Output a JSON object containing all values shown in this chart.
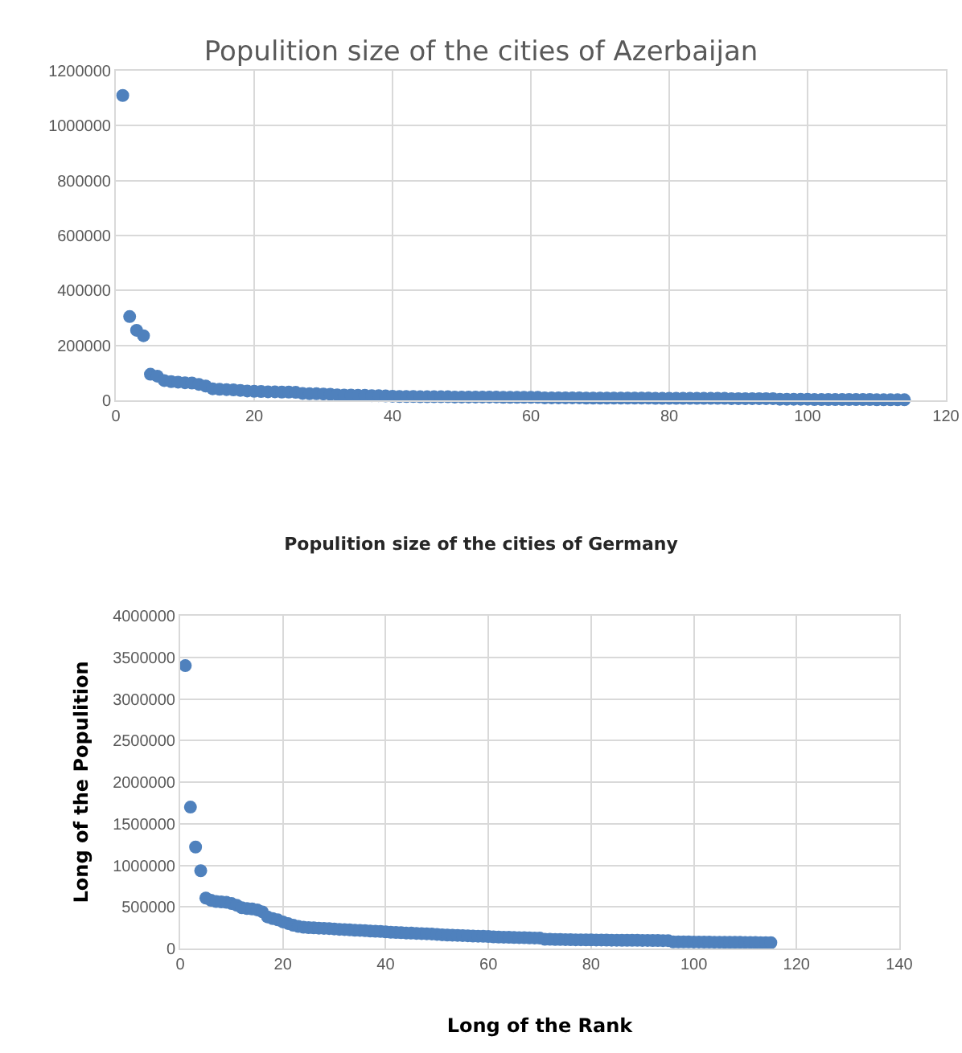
{
  "chart_data": [
    {
      "type": "scatter",
      "title": "Populition size of the cities of Azerbaijan",
      "marker": "circle",
      "grid": true,
      "x": [
        1,
        2,
        3,
        4,
        5,
        6,
        7,
        8,
        9,
        10,
        11,
        12,
        13,
        14,
        15,
        16,
        17,
        18,
        19,
        20,
        21,
        22,
        23,
        24,
        25,
        26,
        27,
        28,
        29,
        30,
        31,
        32,
        33,
        34,
        35,
        36,
        37,
        38,
        39,
        40,
        41,
        42,
        43,
        44,
        45,
        46,
        47,
        48,
        49,
        50,
        51,
        52,
        53,
        54,
        55,
        56,
        57,
        58,
        59,
        60,
        61,
        62,
        63,
        64,
        65,
        66,
        67,
        68,
        69,
        70,
        71,
        72,
        73,
        74,
        75,
        76,
        77,
        78,
        79,
        80,
        81,
        82,
        83,
        84,
        85,
        86,
        87,
        88,
        89,
        90,
        91,
        92,
        93,
        94,
        95,
        96,
        97,
        98,
        99,
        100,
        101,
        102,
        103,
        104,
        105,
        106,
        107,
        108,
        109,
        110,
        111,
        112,
        113,
        114
      ],
      "series": [
        {
          "color": "#4f81bd",
          "values": [
            1110000,
            305000,
            255000,
            235000,
            95000,
            88000,
            72000,
            68000,
            66000,
            64000,
            63000,
            58000,
            52000,
            42000,
            40000,
            39000,
            38000,
            36000,
            34000,
            33000,
            32000,
            31000,
            31000,
            30000,
            30000,
            29000,
            25000,
            24000,
            24000,
            23000,
            22000,
            20000,
            19000,
            19000,
            18000,
            18000,
            17000,
            17000,
            16000,
            15000,
            14000,
            14000,
            14000,
            13000,
            13000,
            13000,
            13000,
            13000,
            12000,
            12000,
            12000,
            12000,
            12000,
            12000,
            12000,
            11000,
            11000,
            11000,
            11000,
            11000,
            11000,
            9000,
            9000,
            9000,
            9000,
            9000,
            9000,
            8000,
            8000,
            8000,
            8000,
            8000,
            8000,
            8000,
            8000,
            8000,
            8000,
            7000,
            7000,
            7000,
            7000,
            7000,
            7000,
            7000,
            7000,
            7000,
            7000,
            7000,
            6000,
            6000,
            6000,
            6000,
            6000,
            6000,
            6000,
            4000,
            4000,
            4000,
            4000,
            4000,
            3000,
            3000,
            3000,
            3000,
            3000,
            3000,
            3000,
            3000,
            3000,
            2000,
            2000,
            2000,
            2000,
            2000
          ]
        }
      ],
      "xlim": [
        0,
        120
      ],
      "xticks": [
        0,
        20,
        40,
        60,
        80,
        100,
        120
      ],
      "ylim": [
        0,
        1200000
      ],
      "yticks": [
        0,
        200000,
        400000,
        600000,
        800000,
        1000000,
        1200000
      ]
    },
    {
      "type": "scatter",
      "title": "Populition size of the cities of Germany",
      "xlabel": "Long of the Rank",
      "ylabel": "Long of the Populition",
      "marker": "circle",
      "grid": true,
      "x": [
        1,
        2,
        3,
        4,
        5,
        6,
        7,
        8,
        9,
        10,
        11,
        12,
        13,
        14,
        15,
        16,
        17,
        18,
        19,
        20,
        21,
        22,
        23,
        24,
        25,
        26,
        27,
        28,
        29,
        30,
        31,
        32,
        33,
        34,
        35,
        36,
        37,
        38,
        39,
        40,
        41,
        42,
        43,
        44,
        45,
        46,
        47,
        48,
        49,
        50,
        51,
        52,
        53,
        54,
        55,
        56,
        57,
        58,
        59,
        60,
        61,
        62,
        63,
        64,
        65,
        66,
        67,
        68,
        69,
        70,
        71,
        72,
        73,
        74,
        75,
        76,
        77,
        78,
        79,
        80,
        81,
        82,
        83,
        84,
        85,
        86,
        87,
        88,
        89,
        90,
        91,
        92,
        93,
        94,
        95,
        96,
        97,
        98,
        99,
        100,
        101,
        102,
        103,
        104,
        105,
        106,
        107,
        108,
        109,
        110,
        111,
        112,
        113,
        114,
        115
      ],
      "series": [
        {
          "color": "#4f81bd",
          "values": [
            3400000,
            1700000,
            1220000,
            935000,
            606000,
            580000,
            565000,
            560000,
            555000,
            540000,
            520000,
            490000,
            480000,
            475000,
            465000,
            440000,
            380000,
            360000,
            345000,
            320000,
            300000,
            280000,
            265000,
            255000,
            250000,
            248000,
            245000,
            242000,
            240000,
            235000,
            230000,
            228000,
            225000,
            220000,
            218000,
            215000,
            210000,
            207000,
            205000,
            200000,
            195000,
            192000,
            190000,
            187000,
            185000,
            182000,
            180000,
            177000,
            175000,
            170000,
            165000,
            162000,
            160000,
            158000,
            155000,
            153000,
            150000,
            148000,
            147000,
            145000,
            140000,
            138000,
            136000,
            135000,
            133000,
            131000,
            130000,
            128000,
            126000,
            125000,
            110000,
            110000,
            108000,
            108000,
            107000,
            106000,
            105000,
            105000,
            104000,
            103000,
            102000,
            102000,
            101000,
            100000,
            100000,
            99000,
            99000,
            98000,
            98000,
            97000,
            97000,
            96000,
            96000,
            95000,
            95000,
            80000,
            80000,
            79000,
            79000,
            78000,
            78000,
            77000,
            77000,
            76000,
            76000,
            75000,
            75000,
            74000,
            74000,
            73000,
            73000,
            72000,
            71000,
            70000,
            70000
          ]
        }
      ],
      "xlim": [
        0,
        140
      ],
      "xticks": [
        0,
        20,
        40,
        60,
        80,
        100,
        120,
        140
      ],
      "ylim": [
        0,
        4000000
      ],
      "yticks": [
        0,
        500000,
        1000000,
        1500000,
        2000000,
        2500000,
        3000000,
        3500000,
        4000000
      ]
    }
  ]
}
